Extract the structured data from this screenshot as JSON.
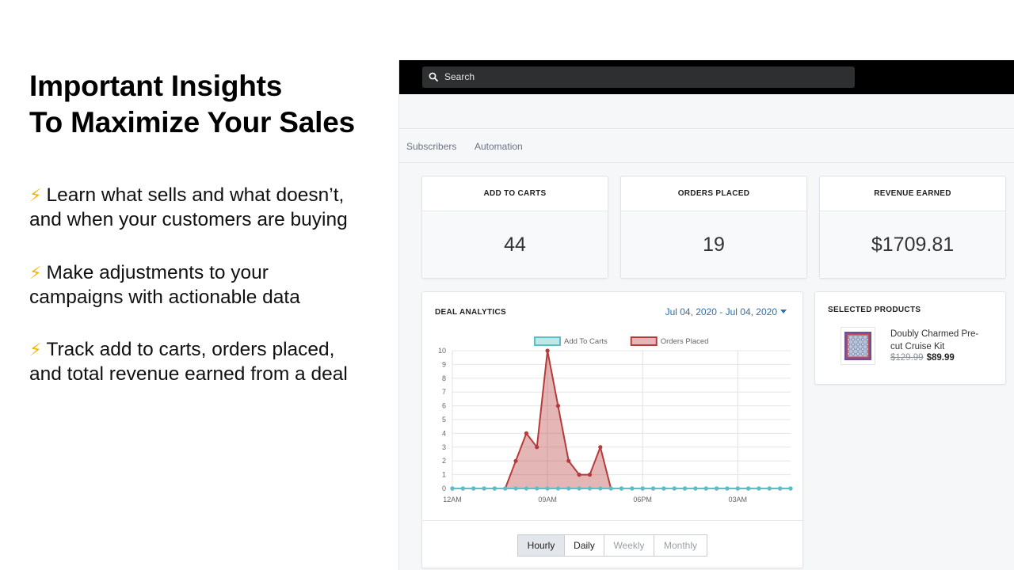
{
  "marketing": {
    "headline": [
      "Important Insights",
      "To Maximize Your Sales"
    ],
    "bullets": [
      {
        "icon": "lightning-icon",
        "line1": "Learn what sells and what doesn’t,",
        "line2": "and when your customers are buying"
      },
      {
        "icon": "lightning-icon",
        "line1": "Make adjustments to your",
        "line2": "campaigns with actionable data"
      },
      {
        "icon": "lightning-icon",
        "line1": "Track add to carts, orders placed,",
        "line2": "and total revenue earned from a deal"
      }
    ]
  },
  "app": {
    "search": {
      "placeholder": "Search",
      "icon": "search-icon"
    },
    "tabs": [
      "Subscribers",
      "Automation"
    ],
    "stats": [
      {
        "label": "ADD TO CARTS",
        "value": "44"
      },
      {
        "label": "ORDERS PLACED",
        "value": "19"
      },
      {
        "label": "REVENUE EARNED",
        "value": "$1709.81"
      }
    ],
    "deal_analytics": {
      "title": "DEAL ANALYTICS",
      "date_range": "Jul 04, 2020 - Jul 04, 2020",
      "periods": [
        "Hourly",
        "Daily",
        "Weekly",
        "Monthly"
      ],
      "active_period": "Hourly"
    },
    "selected_products": {
      "title": "SELECTED PRODUCTS",
      "items": [
        {
          "name": "Doubly Charmed Pre-cut Cruise Kit",
          "old_price": "$129.99",
          "price": "$89.99"
        }
      ]
    }
  },
  "chart_data": {
    "type": "line",
    "title": "",
    "xlabel": "",
    "ylabel": "",
    "x": [
      "12AM",
      "",
      "",
      "",
      "",
      "",
      "",
      "",
      "",
      "09AM",
      "",
      "",
      "",
      "",
      "",
      "",
      "",
      "",
      "06PM",
      "",
      "",
      "",
      "",
      "",
      "",
      "",
      "",
      "03AM",
      "",
      "",
      "",
      "",
      ""
    ],
    "x_ticks": [
      "12AM",
      "09AM",
      "06PM",
      "03AM"
    ],
    "ylim": [
      0,
      10
    ],
    "y_ticks": [
      0,
      1,
      2,
      3,
      4,
      5,
      6,
      7,
      8,
      9,
      10
    ],
    "series": [
      {
        "name": "Add To Carts",
        "color": "#5bc0c6",
        "fill": "#bfe6e8",
        "values": [
          0,
          0,
          0,
          0,
          0,
          0,
          0,
          0,
          0,
          0,
          0,
          0,
          0,
          0,
          0,
          0,
          0,
          0,
          0,
          0,
          0,
          0,
          0,
          0,
          0,
          0,
          0,
          0,
          0,
          0,
          0,
          0,
          0
        ]
      },
      {
        "name": "Orders Placed",
        "color": "#b53b3b",
        "fill": "rgba(192,80,80,0.42)",
        "values": [
          0,
          0,
          0,
          0,
          0,
          0,
          2,
          4,
          3,
          10,
          6,
          2,
          1,
          1,
          3,
          0,
          0,
          0,
          0,
          0,
          0,
          0,
          0,
          0,
          0,
          0,
          0,
          0,
          0,
          0,
          0,
          0,
          0
        ]
      }
    ],
    "legend": "top",
    "grid": true
  }
}
